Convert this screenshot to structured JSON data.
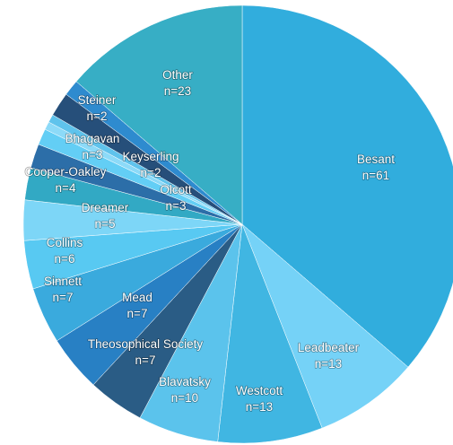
{
  "chart_data": {
    "type": "pie",
    "title": "",
    "start_angle_deg": 0,
    "direction": "clockwise",
    "slices": [
      {
        "name": "Besant",
        "value": 61,
        "label": "n=61",
        "color": "#31ADDD"
      },
      {
        "name": "Leadbeater",
        "value": 13,
        "label": "n=13",
        "color": "#75D2F7"
      },
      {
        "name": "Westcott",
        "value": 13,
        "label": "n=13",
        "color": "#40B6E2"
      },
      {
        "name": "Blavatsky",
        "value": 10,
        "label": "n=10",
        "color": "#5BC3EC"
      },
      {
        "name": "Theosophical Society",
        "value": 7,
        "label": "n=7",
        "color": "#2A5C85"
      },
      {
        "name": "Mead",
        "value": 7,
        "label": "n=7",
        "color": "#2880C4"
      },
      {
        "name": "Sinnett",
        "value": 7,
        "label": "n=7",
        "color": "#3AAADD"
      },
      {
        "name": "Collins",
        "value": 6,
        "label": "n=6",
        "color": "#58C9F2"
      },
      {
        "name": "Dreamer",
        "value": 5,
        "label": "n=5",
        "color": "#7DD6F7"
      },
      {
        "name": "Cooper-Oakley",
        "value": 4,
        "label": "n=4",
        "color": "#32A9C4"
      },
      {
        "name": "Olcott",
        "value": 3,
        "label": "n=3",
        "color": "#2C6EA8"
      },
      {
        "name": "Keyserling",
        "value": 2,
        "label": "n=2",
        "color": "#63CEF5"
      },
      {
        "name": "Bhagavan",
        "value": 3,
        "label": "n=3",
        "color": "#264F7A"
      },
      {
        "name": "Steiner",
        "value": 2,
        "label": "n=2",
        "color": "#2E8BCF"
      },
      {
        "name": "Other",
        "value": 23,
        "label": "n=23",
        "color": "#37AEC5"
      }
    ],
    "tiny_slices": [
      {
        "value": 1,
        "color": "#8CDAF8"
      },
      {
        "value": 1,
        "color": "#5FC3EC"
      }
    ]
  }
}
